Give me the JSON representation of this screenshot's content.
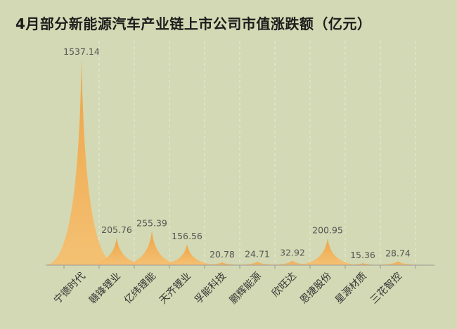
{
  "chart_data": {
    "type": "area",
    "title": "4月部分新能源汽车产业链上市公司市值涨跌额（亿元）",
    "categories": [
      "宁德时代",
      "赣锋锂业",
      "亿纬锂能",
      "天齐锂业",
      "孚能科技",
      "鹏辉能源",
      "欣旺达",
      "恩捷股份",
      "星源材质",
      "三花智控"
    ],
    "values": [
      1537.14,
      205.76,
      255.39,
      156.56,
      20.78,
      24.71,
      32.92,
      200.95,
      15.36,
      28.74
    ],
    "value_labels": [
      "1537.14",
      "205.76",
      "255.39",
      "156.56",
      "20.78",
      "24.71",
      "32.92",
      "200.95",
      "15.36",
      "28.74"
    ],
    "ylim": [
      0,
      1537.14
    ],
    "grid": "vertical dashed",
    "colors": {
      "peak_top": "#f0a040",
      "peak_bottom": "#f5c070",
      "grid": "#e8ecd8",
      "axis": "#999999"
    }
  }
}
